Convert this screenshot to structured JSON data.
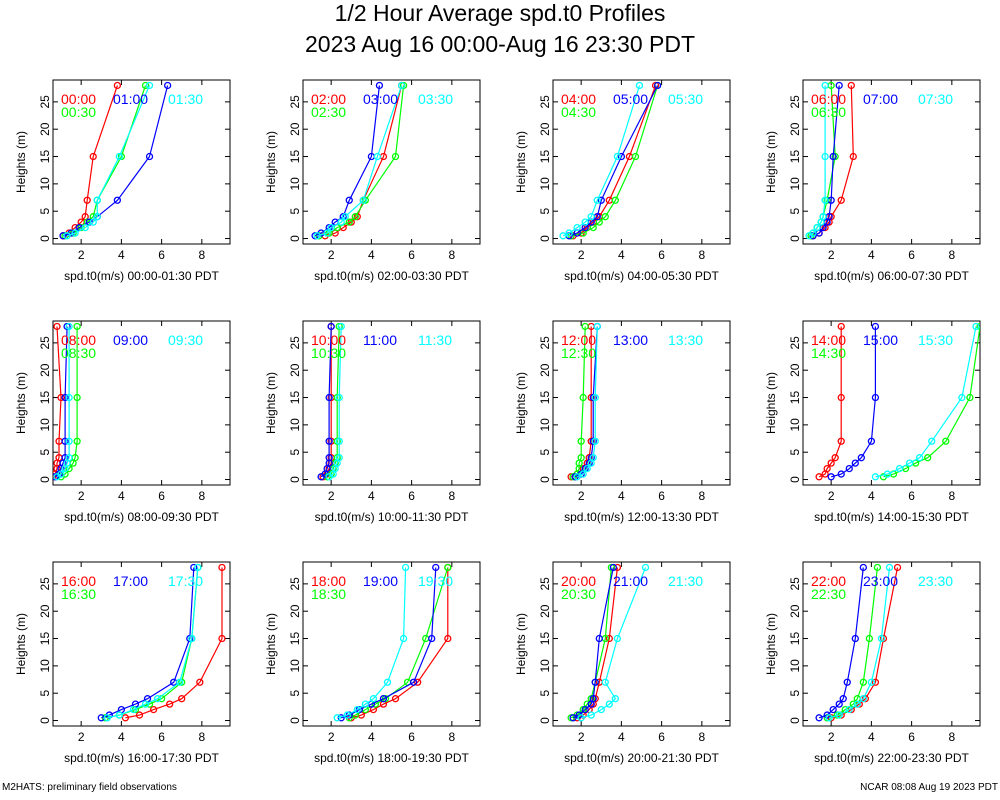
{
  "title": "1/2 Hour Average spd.t0 Profiles",
  "subtitle": "2023 Aug 16 00:00-Aug 16 23:30 PDT",
  "footer_left": "M2HATS: preliminary field observations",
  "footer_right": "NCAR 08:08 Aug 19 2023 PDT",
  "colors": {
    "first": "#ff0000",
    "second": "#0000ff",
    "third": "#00ff00",
    "fourth": "#00ffff",
    "axis": "#000000"
  },
  "chart_data": {
    "type": "line",
    "heights": [
      0.5,
      1,
      2,
      3,
      4,
      7,
      15,
      28
    ],
    "xlim": [
      0.6,
      9.4
    ],
    "ylim": [
      -1,
      29
    ],
    "xticks": [
      2,
      4,
      6,
      8
    ],
    "yticks": [
      0,
      5,
      10,
      15,
      20,
      25
    ],
    "ylabel": "Heights (m)",
    "panels": [
      {
        "xlabel": "spd.t0(m/s) 00:00-01:30 PDT",
        "series": [
          {
            "name": "00:00",
            "color": "red",
            "values": [
              1.1,
              1.4,
              1.7,
              2.0,
              2.2,
              2.3,
              2.6,
              3.8
            ]
          },
          {
            "name": "00:30",
            "color": "green",
            "values": [
              1.2,
              1.6,
              2.0,
              2.3,
              2.6,
              2.8,
              4.0,
              5.2
            ]
          },
          {
            "name": "01:00",
            "color": "blue",
            "values": [
              1.1,
              1.5,
              1.9,
              2.4,
              2.8,
              3.8,
              5.4,
              6.3
            ]
          },
          {
            "name": "01:30",
            "color": "cyan",
            "values": [
              1.3,
              1.7,
              2.2,
              2.6,
              2.8,
              2.8,
              3.9,
              5.4
            ]
          }
        ]
      },
      {
        "xlabel": "spd.t0(m/s) 02:00-03:30 PDT",
        "series": [
          {
            "name": "02:00",
            "color": "red",
            "values": [
              1.7,
              2.2,
              2.6,
              3.0,
              3.3,
              3.6,
              4.6,
              5.5
            ]
          },
          {
            "name": "02:30",
            "color": "green",
            "values": [
              1.4,
              1.9,
              2.3,
              2.9,
              3.2,
              3.7,
              5.2,
              5.6
            ]
          },
          {
            "name": "03:00",
            "color": "blue",
            "values": [
              1.2,
              1.5,
              1.9,
              2.2,
              2.6,
              2.9,
              4.0,
              4.4
            ]
          },
          {
            "name": "03:30",
            "color": "cyan",
            "values": [
              1.3,
              1.8,
              2.0,
              2.5,
              2.7,
              3.6,
              4.3,
              5.5
            ]
          }
        ]
      },
      {
        "xlabel": "spd.t0(m/s) 04:00-05:30 PDT",
        "series": [
          {
            "name": "04:00",
            "color": "red",
            "values": [
              1.6,
              2.0,
              2.3,
              2.6,
              2.9,
              3.4,
              4.4,
              5.7
            ]
          },
          {
            "name": "04:30",
            "color": "green",
            "values": [
              1.5,
              2.1,
              2.6,
              2.9,
              3.2,
              3.7,
              4.7,
              5.8
            ]
          },
          {
            "name": "05:00",
            "color": "blue",
            "values": [
              1.4,
              1.8,
              2.2,
              2.5,
              2.8,
              3.0,
              4.0,
              5.8
            ]
          },
          {
            "name": "05:30",
            "color": "cyan",
            "values": [
              1.1,
              1.4,
              1.8,
              2.2,
              2.5,
              2.8,
              3.8,
              4.9
            ]
          }
        ]
      },
      {
        "xlabel": "spd.t0(m/s) 06:00-07:30 PDT",
        "series": [
          {
            "name": "06:00",
            "color": "red",
            "values": [
              1.1,
              1.4,
              1.7,
              1.9,
              2.0,
              2.5,
              3.1,
              3.0
            ]
          },
          {
            "name": "06:30",
            "color": "green",
            "values": [
              1.0,
              1.1,
              1.3,
              1.5,
              1.6,
              1.8,
              2.2,
              2.0
            ]
          },
          {
            "name": "07:00",
            "color": "blue",
            "values": [
              1.1,
              1.4,
              1.6,
              1.8,
              1.9,
              2.0,
              2.1,
              2.4
            ]
          },
          {
            "name": "07:30",
            "color": "cyan",
            "values": [
              0.9,
              1.1,
              1.3,
              1.5,
              1.6,
              1.7,
              1.7,
              1.7
            ]
          }
        ]
      },
      {
        "xlabel": "spd.t0(m/s) 08:00-09:30 PDT",
        "series": [
          {
            "name": "08:00",
            "color": "red",
            "values": [
              0.6,
              0.7,
              0.8,
              0.8,
              0.9,
              0.9,
              1.0,
              0.8
            ]
          },
          {
            "name": "08:30",
            "color": "green",
            "values": [
              1.0,
              1.2,
              1.4,
              1.6,
              1.7,
              1.8,
              1.8,
              1.8
            ]
          },
          {
            "name": "09:00",
            "color": "blue",
            "values": [
              0.7,
              0.9,
              1.0,
              1.1,
              1.2,
              1.2,
              1.2,
              1.3
            ]
          },
          {
            "name": "09:30",
            "color": "cyan",
            "values": [
              0.8,
              1.0,
              1.2,
              1.3,
              1.4,
              1.4,
              1.4,
              1.4
            ]
          }
        ]
      },
      {
        "xlabel": "spd.t0(m/s) 10:00-11:30 PDT",
        "series": [
          {
            "name": "10:00",
            "color": "red",
            "values": [
              1.6,
              1.8,
              1.9,
              2.0,
              2.0,
              2.0,
              2.0,
              2.0
            ]
          },
          {
            "name": "10:30",
            "color": "green",
            "values": [
              1.8,
              2.0,
              2.1,
              2.2,
              2.3,
              2.3,
              2.3,
              2.4
            ]
          },
          {
            "name": "11:00",
            "color": "blue",
            "values": [
              1.5,
              1.7,
              1.8,
              1.9,
              1.9,
              1.9,
              1.9,
              2.0
            ]
          },
          {
            "name": "11:30",
            "color": "cyan",
            "values": [
              1.9,
              2.1,
              2.2,
              2.3,
              2.4,
              2.4,
              2.4,
              2.5
            ]
          }
        ]
      },
      {
        "xlabel": "spd.t0(m/s) 12:00-13:30 PDT",
        "series": [
          {
            "name": "12:00",
            "color": "red",
            "values": [
              1.5,
              1.8,
              2.1,
              2.3,
              2.4,
              2.5,
              2.5,
              2.5
            ]
          },
          {
            "name": "12:30",
            "color": "green",
            "values": [
              1.6,
              1.8,
              1.9,
              1.9,
              2.0,
              2.0,
              2.1,
              2.2
            ]
          },
          {
            "name": "13:00",
            "color": "blue",
            "values": [
              1.7,
              2.0,
              2.2,
              2.4,
              2.5,
              2.6,
              2.6,
              2.8
            ]
          },
          {
            "name": "13:30",
            "color": "cyan",
            "values": [
              1.8,
              2.1,
              2.3,
              2.5,
              2.6,
              2.7,
              2.7,
              2.8
            ]
          }
        ]
      },
      {
        "xlabel": "spd.t0(m/s) 14:00-15:30 PDT",
        "series": [
          {
            "name": "14:00",
            "color": "red",
            "values": [
              1.4,
              1.7,
              1.8,
              2.0,
              2.2,
              2.5,
              2.5,
              2.5
            ]
          },
          {
            "name": "14:30",
            "color": "green",
            "values": [
              4.6,
              5.1,
              5.7,
              6.2,
              6.8,
              7.7,
              8.9,
              9.4
            ]
          },
          {
            "name": "15:00",
            "color": "blue",
            "values": [
              2.0,
              2.5,
              2.9,
              3.2,
              3.5,
              4.0,
              4.2,
              4.2
            ]
          },
          {
            "name": "15:30",
            "color": "cyan",
            "values": [
              4.2,
              4.8,
              5.4,
              5.9,
              6.4,
              7.0,
              8.5,
              9.2
            ]
          }
        ]
      },
      {
        "xlabel": "spd.t0(m/s) 16:00-17:30 PDT",
        "series": [
          {
            "name": "16:00",
            "color": "red",
            "values": [
              4.2,
              4.9,
              5.6,
              6.4,
              7.0,
              7.9,
              9.0,
              9.0
            ]
          },
          {
            "name": "16:30",
            "color": "green",
            "values": [
              3.2,
              3.9,
              4.7,
              5.4,
              6.0,
              7.0,
              7.5,
              7.8
            ]
          },
          {
            "name": "17:00",
            "color": "blue",
            "values": [
              3.0,
              3.4,
              4.0,
              4.7,
              5.3,
              6.6,
              7.4,
              7.6
            ]
          },
          {
            "name": "17:30",
            "color": "cyan",
            "values": [
              3.3,
              3.9,
              4.6,
              5.2,
              5.8,
              6.9,
              7.5,
              7.8
            ]
          }
        ]
      },
      {
        "xlabel": "spd.t0(m/s) 18:00-19:30 PDT",
        "series": [
          {
            "name": "18:00",
            "color": "red",
            "values": [
              3.0,
              3.5,
              4.1,
              4.6,
              5.2,
              6.3,
              7.8,
              7.8
            ]
          },
          {
            "name": "18:30",
            "color": "green",
            "values": [
              2.9,
              3.2,
              3.7,
              4.2,
              4.7,
              5.8,
              6.7,
              7.8
            ]
          },
          {
            "name": "19:00",
            "color": "blue",
            "values": [
              2.5,
              2.9,
              3.4,
              4.0,
              4.6,
              6.1,
              7.0,
              7.2
            ]
          },
          {
            "name": "19:30",
            "color": "cyan",
            "values": [
              2.3,
              2.8,
              3.3,
              3.7,
              4.1,
              4.8,
              5.6,
              5.7
            ]
          }
        ]
      },
      {
        "xlabel": "spd.t0(m/s) 20:00-21:30 PDT",
        "series": [
          {
            "name": "20:00",
            "color": "red",
            "values": [
              1.8,
              2.1,
              2.4,
              2.6,
              2.7,
              2.9,
              3.4,
              3.8
            ]
          },
          {
            "name": "20:30",
            "color": "green",
            "values": [
              1.5,
              1.8,
              2.1,
              2.3,
              2.5,
              2.7,
              3.2,
              3.5
            ]
          },
          {
            "name": "21:00",
            "color": "blue",
            "values": [
              1.6,
              1.9,
              2.2,
              2.5,
              2.6,
              2.7,
              2.9,
              3.6
            ]
          },
          {
            "name": "21:30",
            "color": "cyan",
            "values": [
              2.0,
              2.5,
              3.0,
              3.4,
              3.7,
              3.2,
              3.8,
              5.2
            ]
          }
        ]
      },
      {
        "xlabel": "spd.t0(m/s) 22:00-23:30 PDT",
        "series": [
          {
            "name": "22:00",
            "color": "red",
            "values": [
              2.0,
              2.5,
              3.0,
              3.4,
              3.7,
              4.2,
              4.6,
              5.3
            ]
          },
          {
            "name": "22:30",
            "color": "green",
            "values": [
              1.8,
              2.3,
              2.7,
              3.1,
              3.3,
              3.6,
              3.9,
              4.3
            ]
          },
          {
            "name": "23:00",
            "color": "blue",
            "values": [
              1.4,
              1.8,
              2.1,
              2.4,
              2.6,
              2.8,
              3.2,
              3.6
            ]
          },
          {
            "name": "23:30",
            "color": "cyan",
            "values": [
              1.9,
              2.4,
              2.9,
              3.3,
              3.6,
              4.0,
              4.5,
              4.9
            ]
          }
        ]
      }
    ]
  }
}
